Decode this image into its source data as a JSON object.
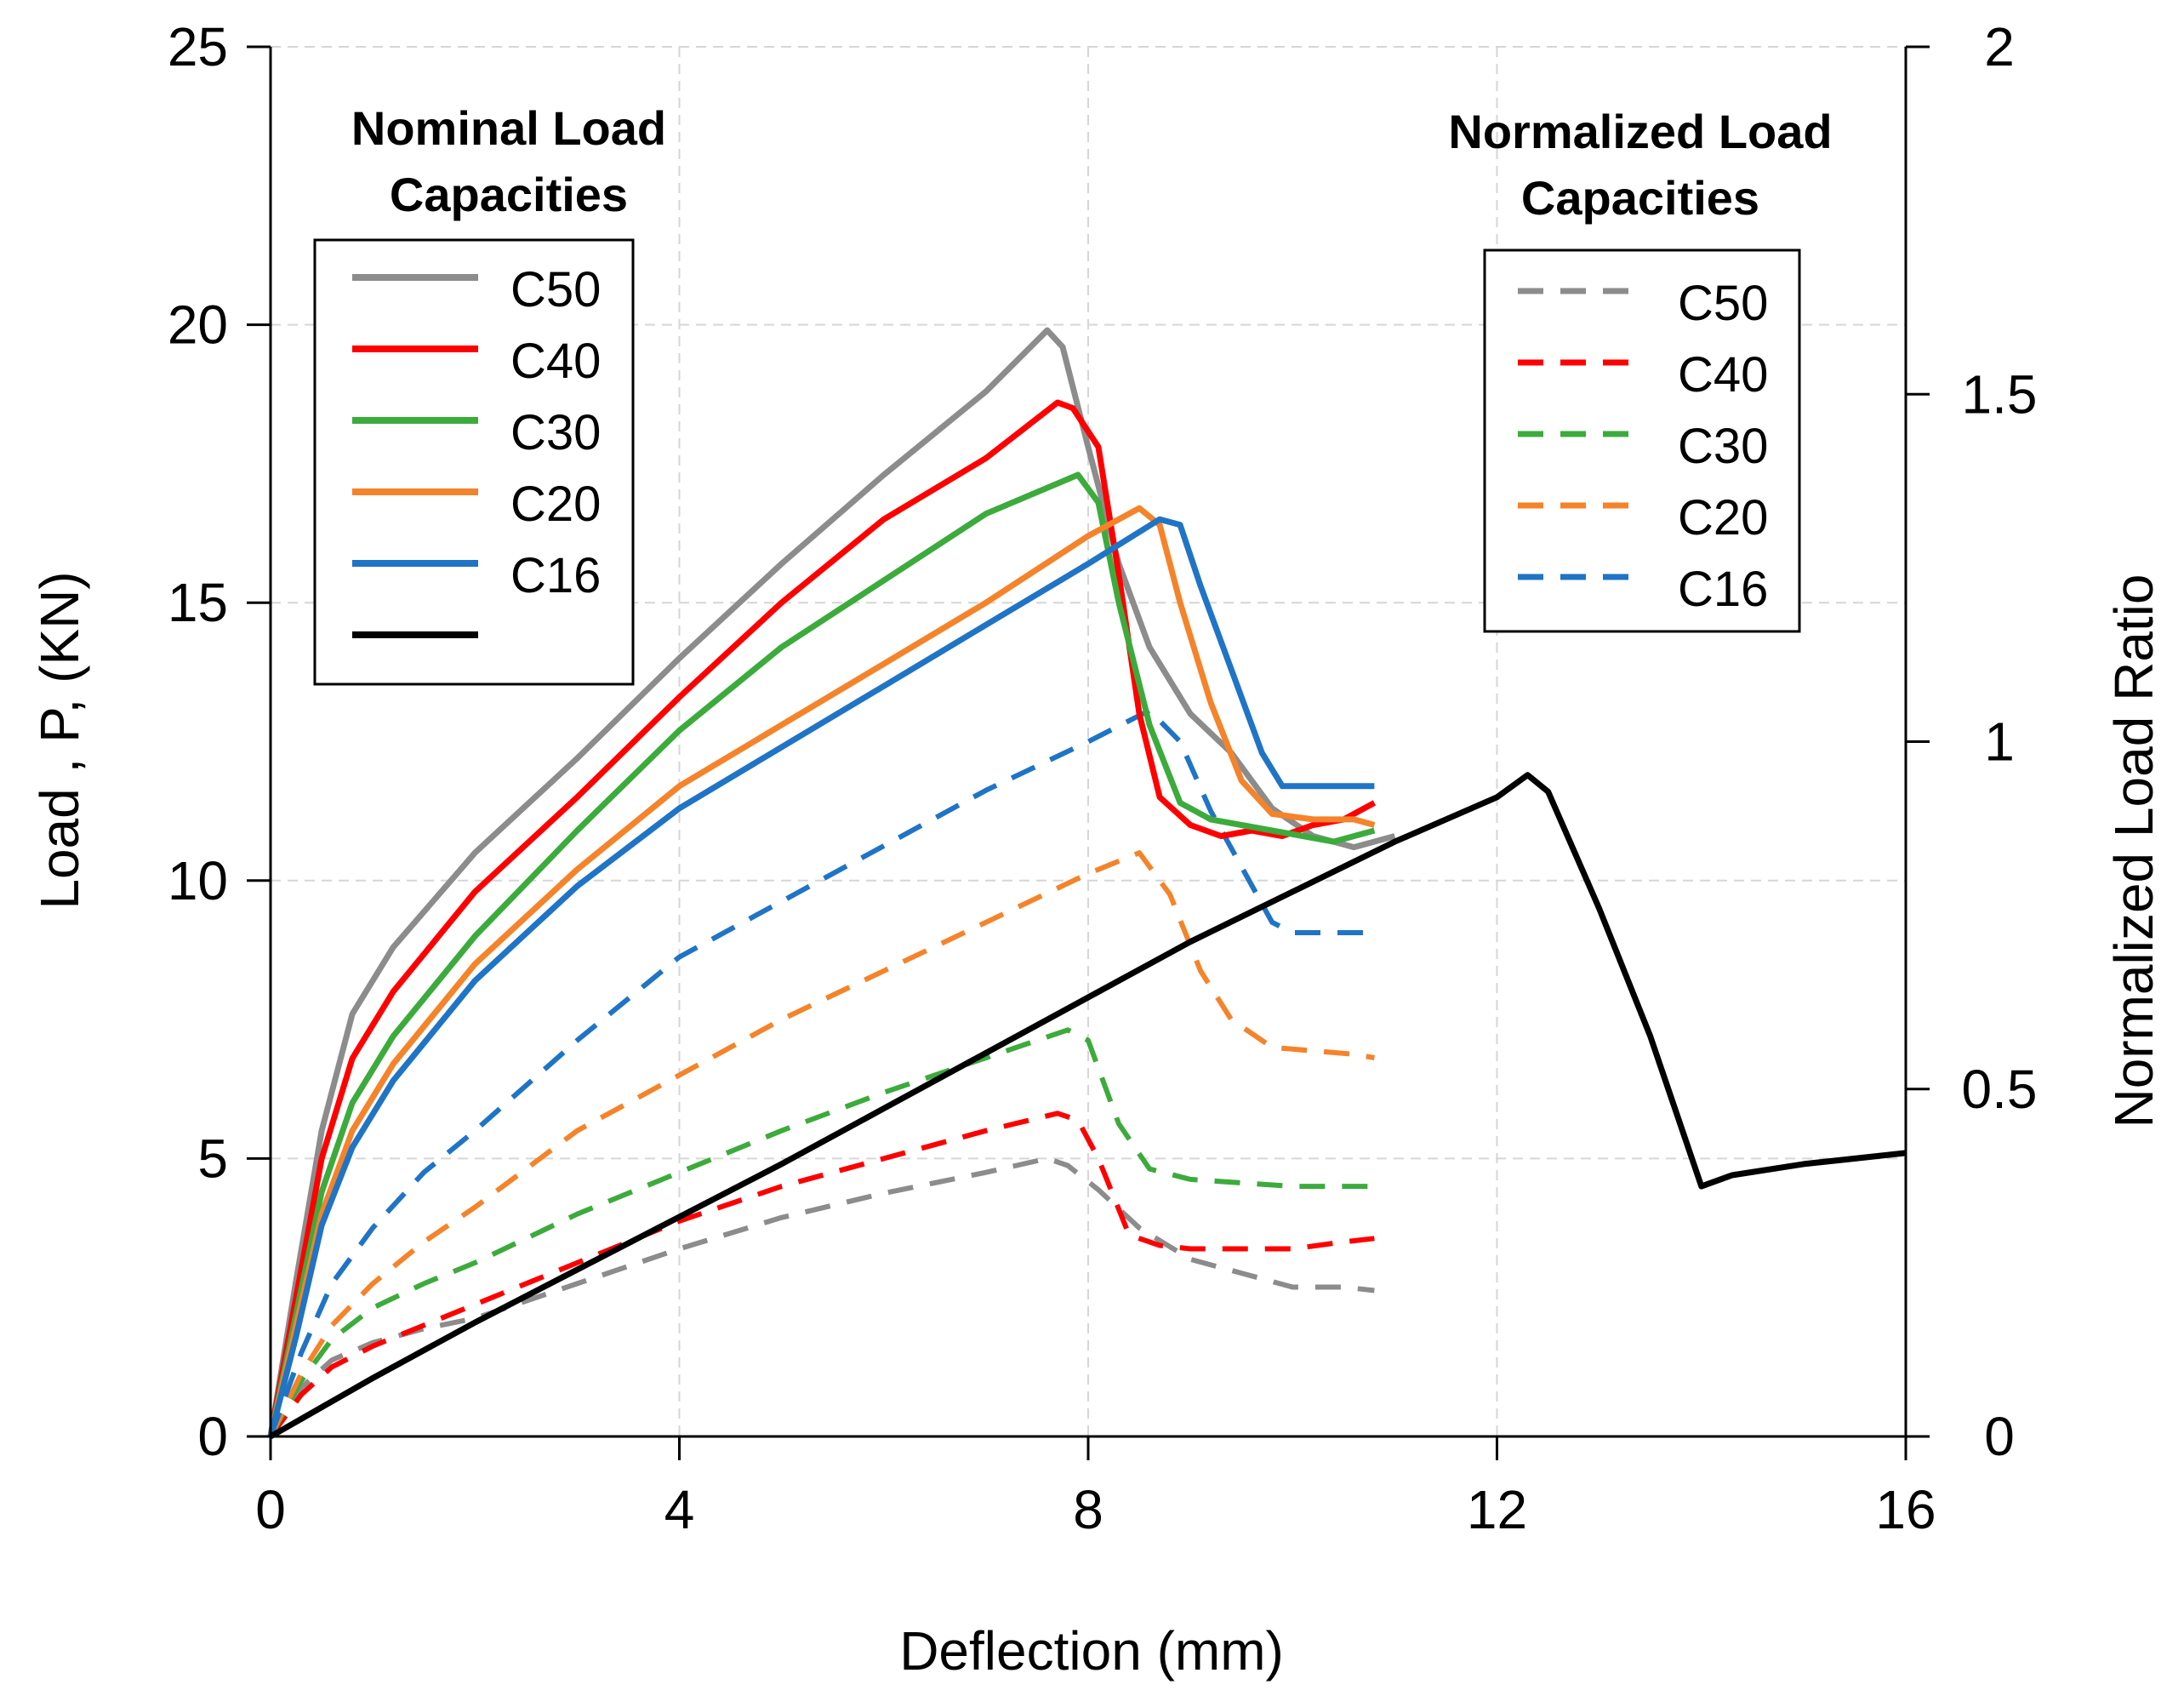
{
  "chart_data": {
    "type": "line",
    "xlabel": "Deflection (mm)",
    "ylabel": "Load , P, (KN)",
    "y2label": "Normalized Load Ratio",
    "xlim": [
      0,
      16
    ],
    "ylim": [
      0,
      25
    ],
    "y2lim": [
      0,
      2
    ],
    "x_ticks": [
      "0",
      "4",
      "8",
      "12",
      "16"
    ],
    "y_ticks": [
      "0",
      "5",
      "10",
      "15",
      "20",
      "25"
    ],
    "y2_ticks": [
      "0",
      "0.5",
      "1",
      "1.5",
      "2"
    ],
    "grid": true,
    "colors": {
      "C50": "#8c8c8c",
      "C40": "#ff0000",
      "C30": "#3cab3c",
      "C20": "#f5832a",
      "C16": "#1f74c6",
      "black": "#000000"
    },
    "legend_nominal": {
      "title_line1": "Nominal Load",
      "title_line2": "Capacities",
      "entries": [
        "C50",
        "C40",
        "C30",
        "C20",
        "C16",
        ""
      ],
      "placement": "top-left"
    },
    "legend_normalized": {
      "title_line1": "Normalized Load",
      "title_line2": "Capacities",
      "entries": [
        "C50",
        "C40",
        "C30",
        "C20",
        "C16"
      ],
      "placement": "top-right"
    },
    "series": [
      {
        "name": "C50",
        "axis": "left",
        "dash": false,
        "color": "#8c8c8c",
        "x": [
          0,
          0.25,
          0.5,
          0.8,
          1.2,
          2,
          3,
          4,
          5,
          6,
          7,
          7.6,
          7.75,
          8.0,
          8.3,
          8.6,
          9.0,
          9.4,
          9.8,
          10.2,
          10.6,
          11.0
        ],
        "y": [
          0,
          2.8,
          5.5,
          7.6,
          8.8,
          10.5,
          12.2,
          14.0,
          15.7,
          17.3,
          18.8,
          19.9,
          19.6,
          17.8,
          15.7,
          14.2,
          13.0,
          12.3,
          11.3,
          10.8,
          10.6,
          10.8
        ]
      },
      {
        "name": "C40",
        "axis": "left",
        "dash": false,
        "color": "#ff0000",
        "x": [
          0,
          0.25,
          0.5,
          0.8,
          1.2,
          2,
          3,
          4,
          5,
          6,
          7,
          7.7,
          7.85,
          8.1,
          8.3,
          8.5,
          8.7,
          9.0,
          9.3,
          9.6,
          9.9,
          10.2,
          10.5,
          10.8
        ],
        "y": [
          0,
          2.5,
          5.0,
          6.8,
          8.0,
          9.8,
          11.5,
          13.3,
          15.0,
          16.5,
          17.6,
          18.6,
          18.5,
          17.8,
          15.5,
          13.0,
          11.5,
          11.0,
          10.8,
          10.9,
          10.8,
          11.0,
          11.1,
          11.4
        ]
      },
      {
        "name": "C30",
        "axis": "left",
        "dash": false,
        "color": "#3cab3c",
        "x": [
          0,
          0.25,
          0.5,
          0.8,
          1.2,
          2,
          3,
          4,
          5,
          6,
          7,
          7.9,
          8.1,
          8.3,
          8.6,
          8.9,
          9.2,
          9.5,
          9.8,
          10.1,
          10.4,
          10.8
        ],
        "y": [
          0,
          2.2,
          4.4,
          6.0,
          7.2,
          9.0,
          10.9,
          12.7,
          14.2,
          15.4,
          16.6,
          17.3,
          16.8,
          15.0,
          12.8,
          11.4,
          11.1,
          11.0,
          10.9,
          10.8,
          10.7,
          10.9
        ]
      },
      {
        "name": "C20",
        "axis": "left",
        "dash": false,
        "color": "#f5832a",
        "x": [
          0,
          0.25,
          0.5,
          0.8,
          1.2,
          2,
          3,
          4,
          5,
          6,
          7,
          8,
          8.5,
          8.7,
          8.9,
          9.2,
          9.5,
          9.8,
          10.2,
          10.6,
          10.8
        ],
        "y": [
          0,
          2.0,
          4.0,
          5.5,
          6.7,
          8.5,
          10.2,
          11.7,
          12.8,
          13.9,
          15.0,
          16.2,
          16.7,
          16.4,
          15.0,
          13.2,
          11.8,
          11.2,
          11.1,
          11.1,
          11.0
        ]
      },
      {
        "name": "C16",
        "axis": "left",
        "dash": false,
        "color": "#1f74c6",
        "x": [
          0,
          0.25,
          0.5,
          0.8,
          1.2,
          2,
          3,
          4,
          5,
          6,
          7,
          8,
          8.7,
          8.9,
          9.1,
          9.4,
          9.7,
          9.9,
          10.3,
          10.8
        ],
        "y": [
          0,
          1.8,
          3.8,
          5.2,
          6.4,
          8.2,
          9.9,
          11.3,
          12.4,
          13.5,
          14.6,
          15.7,
          16.5,
          16.4,
          15.3,
          13.8,
          12.3,
          11.7,
          11.7,
          11.7
        ]
      },
      {
        "name": "black",
        "axis": "left",
        "dash": false,
        "color": "#000000",
        "x": [
          0,
          1,
          2,
          3,
          4,
          5,
          6,
          7,
          8,
          9,
          10,
          11,
          12,
          12.3,
          12.5,
          13.0,
          13.5,
          14.0,
          14.3,
          15,
          16
        ],
        "y": [
          0,
          1.05,
          2.05,
          3.0,
          3.95,
          4.9,
          5.9,
          6.9,
          7.9,
          8.9,
          9.8,
          10.7,
          11.5,
          11.9,
          11.6,
          9.5,
          7.2,
          4.5,
          4.7,
          4.9,
          5.1
        ]
      },
      {
        "name": "C50",
        "axis": "right",
        "dash": true,
        "color": "#8c8c8c",
        "x": [
          0,
          0.3,
          0.6,
          1,
          1.5,
          2,
          3,
          4,
          5,
          6,
          7,
          7.6,
          7.8,
          8.1,
          8.5,
          9.0,
          9.5,
          10.0,
          10.5,
          10.8
        ],
        "y": [
          0,
          0.07,
          0.11,
          0.135,
          0.155,
          0.17,
          0.22,
          0.27,
          0.315,
          0.35,
          0.38,
          0.4,
          0.39,
          0.355,
          0.3,
          0.255,
          0.235,
          0.215,
          0.215,
          0.21
        ]
      },
      {
        "name": "C40",
        "axis": "right",
        "dash": true,
        "color": "#ff0000",
        "x": [
          0,
          0.3,
          0.6,
          1,
          1.5,
          2,
          3,
          4,
          5,
          6,
          7,
          7.7,
          7.9,
          8.1,
          8.4,
          8.7,
          9.0,
          9.5,
          10.0,
          10.5,
          10.8
        ],
        "y": [
          0,
          0.06,
          0.1,
          0.13,
          0.16,
          0.19,
          0.25,
          0.31,
          0.36,
          0.4,
          0.44,
          0.465,
          0.455,
          0.4,
          0.29,
          0.275,
          0.27,
          0.27,
          0.27,
          0.28,
          0.285
        ]
      },
      {
        "name": "C30",
        "axis": "right",
        "dash": true,
        "color": "#3cab3c",
        "x": [
          0,
          0.3,
          0.6,
          1,
          1.5,
          2,
          3,
          4,
          5,
          6,
          7,
          7.8,
          8.0,
          8.3,
          8.6,
          9.0,
          9.5,
          10.0,
          10.5,
          10.8
        ],
        "y": [
          0,
          0.08,
          0.14,
          0.185,
          0.22,
          0.25,
          0.32,
          0.38,
          0.44,
          0.495,
          0.545,
          0.585,
          0.57,
          0.45,
          0.385,
          0.37,
          0.365,
          0.36,
          0.36,
          0.36
        ]
      },
      {
        "name": "C20",
        "axis": "right",
        "dash": true,
        "color": "#f5832a",
        "x": [
          0,
          0.3,
          0.6,
          1,
          1.5,
          2,
          3,
          4,
          5,
          6,
          7,
          8,
          8.5,
          8.8,
          9.1,
          9.4,
          9.8,
          10.2,
          10.6,
          10.8
        ],
        "y": [
          0,
          0.09,
          0.16,
          0.22,
          0.28,
          0.33,
          0.44,
          0.52,
          0.6,
          0.67,
          0.74,
          0.81,
          0.84,
          0.78,
          0.67,
          0.6,
          0.56,
          0.555,
          0.55,
          0.545
        ]
      },
      {
        "name": "C16",
        "axis": "right",
        "dash": true,
        "color": "#1f74c6",
        "x": [
          0,
          0.3,
          0.6,
          1,
          1.5,
          2,
          3,
          4,
          5,
          6,
          7,
          8,
          8.6,
          8.9,
          9.2,
          9.5,
          9.8,
          10.0,
          10.4,
          10.8
        ],
        "y": [
          0,
          0.12,
          0.22,
          0.3,
          0.38,
          0.44,
          0.57,
          0.69,
          0.77,
          0.85,
          0.93,
          1.0,
          1.045,
          1.0,
          0.9,
          0.82,
          0.74,
          0.725,
          0.725,
          0.725
        ]
      }
    ]
  }
}
